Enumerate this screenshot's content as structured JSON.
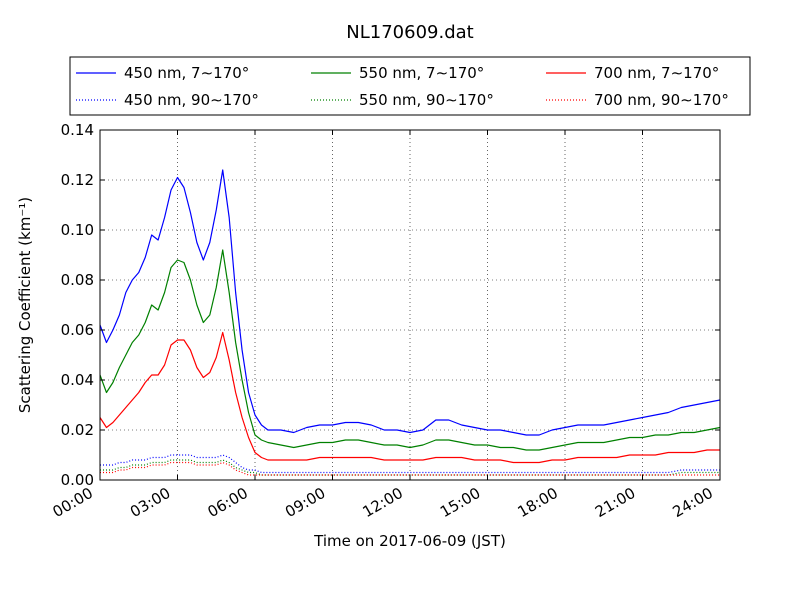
{
  "chart_data": {
    "type": "line",
    "title": "NL170609.dat",
    "xlabel": "Time on 2017-06-09 (JST)",
    "ylabel": "Scattering Coefficient (km⁻¹)",
    "xlim": [
      0,
      24
    ],
    "ylim": [
      0,
      0.14
    ],
    "x_ticks": [
      0,
      3,
      6,
      9,
      12,
      15,
      18,
      21,
      24
    ],
    "x_tick_labels": [
      "00:00",
      "03:00",
      "06:00",
      "09:00",
      "12:00",
      "15:00",
      "18:00",
      "21:00",
      "24:00"
    ],
    "y_ticks": [
      0,
      0.02,
      0.04,
      0.06,
      0.08,
      0.1,
      0.12,
      0.14
    ],
    "y_tick_labels": [
      "0.00",
      "0.02",
      "0.04",
      "0.06",
      "0.08",
      "0.10",
      "0.12",
      "0.14"
    ],
    "grid": true,
    "legend_position": "top",
    "x": [
      0,
      0.25,
      0.5,
      0.75,
      1,
      1.25,
      1.5,
      1.75,
      2,
      2.25,
      2.5,
      2.75,
      3,
      3.25,
      3.5,
      3.75,
      4,
      4.25,
      4.5,
      4.75,
      5,
      5.25,
      5.5,
      5.75,
      6,
      6.25,
      6.5,
      7,
      7.5,
      8,
      8.5,
      9,
      9.5,
      10,
      10.5,
      11,
      11.5,
      12,
      12.5,
      13,
      13.5,
      14,
      14.5,
      15,
      15.5,
      16,
      16.5,
      17,
      17.5,
      18,
      18.5,
      19,
      19.5,
      20,
      20.5,
      21,
      21.5,
      22,
      22.5,
      23,
      23.5,
      24
    ],
    "series": [
      {
        "name": "450 nm, 7∼170°",
        "color": "#0000ff",
        "style": "solid",
        "values": [
          0.062,
          0.055,
          0.06,
          0.066,
          0.075,
          0.08,
          0.083,
          0.089,
          0.098,
          0.096,
          0.105,
          0.116,
          0.121,
          0.117,
          0.107,
          0.095,
          0.088,
          0.095,
          0.108,
          0.124,
          0.105,
          0.075,
          0.052,
          0.035,
          0.026,
          0.022,
          0.02,
          0.02,
          0.019,
          0.021,
          0.022,
          0.022,
          0.023,
          0.023,
          0.022,
          0.02,
          0.02,
          0.019,
          0.02,
          0.024,
          0.024,
          0.022,
          0.021,
          0.02,
          0.02,
          0.019,
          0.018,
          0.018,
          0.02,
          0.021,
          0.022,
          0.022,
          0.022,
          0.023,
          0.024,
          0.025,
          0.026,
          0.027,
          0.029,
          0.03,
          0.031,
          0.032
        ]
      },
      {
        "name": "450 nm, 90∼170°",
        "color": "#0000ff",
        "style": "dotted",
        "values": [
          0.006,
          0.006,
          0.006,
          0.007,
          0.007,
          0.008,
          0.008,
          0.008,
          0.009,
          0.009,
          0.009,
          0.01,
          0.01,
          0.01,
          0.01,
          0.009,
          0.009,
          0.009,
          0.009,
          0.01,
          0.009,
          0.007,
          0.005,
          0.004,
          0.004,
          0.003,
          0.003,
          0.003,
          0.003,
          0.003,
          0.003,
          0.003,
          0.003,
          0.003,
          0.003,
          0.003,
          0.003,
          0.003,
          0.003,
          0.003,
          0.003,
          0.003,
          0.003,
          0.003,
          0.003,
          0.003,
          0.003,
          0.003,
          0.003,
          0.003,
          0.003,
          0.003,
          0.003,
          0.003,
          0.003,
          0.003,
          0.003,
          0.003,
          0.004,
          0.004,
          0.004,
          0.004
        ]
      },
      {
        "name": "550 nm, 7∼170°",
        "color": "#008000",
        "style": "solid",
        "values": [
          0.042,
          0.035,
          0.039,
          0.045,
          0.05,
          0.055,
          0.058,
          0.063,
          0.07,
          0.068,
          0.075,
          0.085,
          0.088,
          0.087,
          0.08,
          0.07,
          0.063,
          0.066,
          0.077,
          0.092,
          0.075,
          0.055,
          0.04,
          0.027,
          0.018,
          0.016,
          0.015,
          0.014,
          0.013,
          0.014,
          0.015,
          0.015,
          0.016,
          0.016,
          0.015,
          0.014,
          0.014,
          0.013,
          0.014,
          0.016,
          0.016,
          0.015,
          0.014,
          0.014,
          0.013,
          0.013,
          0.012,
          0.012,
          0.013,
          0.014,
          0.015,
          0.015,
          0.015,
          0.016,
          0.017,
          0.017,
          0.018,
          0.018,
          0.019,
          0.019,
          0.02,
          0.021
        ]
      },
      {
        "name": "550 nm, 90∼170°",
        "color": "#008000",
        "style": "dotted",
        "values": [
          0.004,
          0.004,
          0.004,
          0.005,
          0.005,
          0.006,
          0.006,
          0.006,
          0.007,
          0.007,
          0.007,
          0.008,
          0.008,
          0.008,
          0.008,
          0.007,
          0.007,
          0.007,
          0.007,
          0.008,
          0.007,
          0.005,
          0.004,
          0.003,
          0.003,
          0.002,
          0.002,
          0.002,
          0.002,
          0.002,
          0.002,
          0.002,
          0.002,
          0.002,
          0.002,
          0.002,
          0.002,
          0.002,
          0.002,
          0.002,
          0.002,
          0.002,
          0.002,
          0.002,
          0.002,
          0.002,
          0.002,
          0.002,
          0.002,
          0.002,
          0.002,
          0.002,
          0.002,
          0.002,
          0.002,
          0.002,
          0.002,
          0.002,
          0.003,
          0.003,
          0.003,
          0.003
        ]
      },
      {
        "name": "700 nm, 7∼170°",
        "color": "#ff0000",
        "style": "solid",
        "values": [
          0.025,
          0.021,
          0.023,
          0.026,
          0.029,
          0.032,
          0.035,
          0.039,
          0.042,
          0.042,
          0.046,
          0.054,
          0.056,
          0.056,
          0.052,
          0.045,
          0.041,
          0.043,
          0.049,
          0.059,
          0.048,
          0.035,
          0.025,
          0.017,
          0.011,
          0.009,
          0.008,
          0.008,
          0.008,
          0.008,
          0.009,
          0.009,
          0.009,
          0.009,
          0.009,
          0.008,
          0.008,
          0.008,
          0.008,
          0.009,
          0.009,
          0.009,
          0.008,
          0.008,
          0.008,
          0.007,
          0.007,
          0.007,
          0.008,
          0.008,
          0.009,
          0.009,
          0.009,
          0.009,
          0.01,
          0.01,
          0.01,
          0.011,
          0.011,
          0.011,
          0.012,
          0.012
        ]
      },
      {
        "name": "700 nm, 90∼170°",
        "color": "#ff0000",
        "style": "dotted",
        "values": [
          0.003,
          0.003,
          0.003,
          0.004,
          0.004,
          0.005,
          0.005,
          0.005,
          0.006,
          0.006,
          0.006,
          0.007,
          0.007,
          0.007,
          0.007,
          0.006,
          0.006,
          0.006,
          0.006,
          0.007,
          0.006,
          0.004,
          0.003,
          0.002,
          0.002,
          0.002,
          0.002,
          0.002,
          0.002,
          0.002,
          0.002,
          0.002,
          0.002,
          0.002,
          0.002,
          0.002,
          0.002,
          0.002,
          0.002,
          0.002,
          0.002,
          0.002,
          0.002,
          0.002,
          0.002,
          0.002,
          0.002,
          0.002,
          0.002,
          0.002,
          0.002,
          0.002,
          0.002,
          0.002,
          0.002,
          0.002,
          0.002,
          0.002,
          0.002,
          0.002,
          0.002,
          0.002
        ]
      }
    ]
  }
}
